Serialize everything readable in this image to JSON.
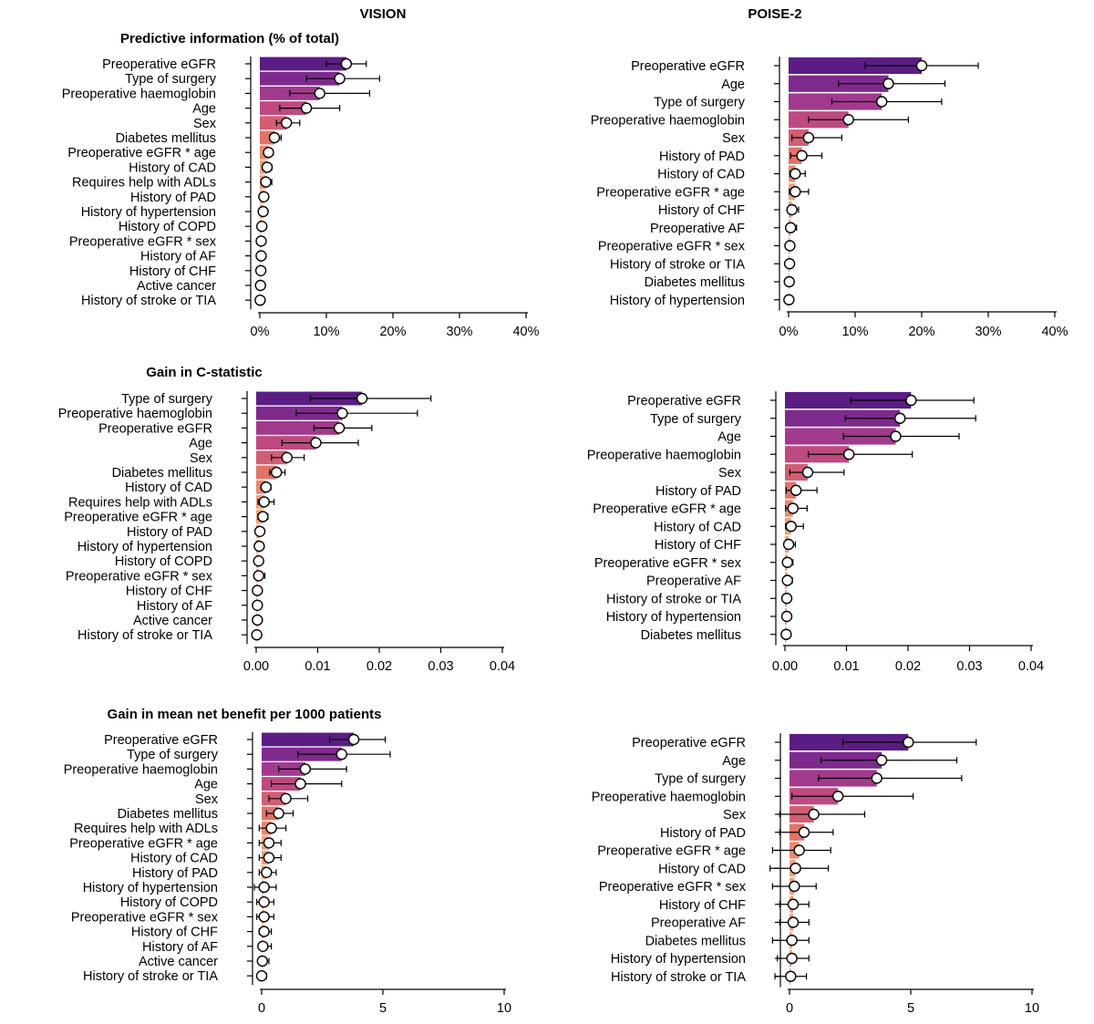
{
  "column_titles": [
    "VISION",
    "POISE-2"
  ],
  "row_titles": [
    "Predictive information (% of total)",
    "Gain in C-statistic",
    "Gain in mean net benefit per 1000 patients"
  ],
  "colors": [
    "#5b1d83",
    "#7e2a8c",
    "#a13a8c",
    "#bd4a80",
    "#d15f74",
    "#e07368",
    "#e88a6c",
    "#eea27a"
  ],
  "chart_data": [
    {
      "type": "bar",
      "study": "VISION",
      "metric": "Predictive information (% of total)",
      "title": "Predictive information (% of total)",
      "xlim": [
        0,
        40
      ],
      "ticks": [
        0,
        10,
        20,
        30,
        40
      ],
      "tick_labels": [
        "0%",
        "10%",
        "20%",
        "30%",
        "40%"
      ],
      "categories": [
        "Preoperative eGFR",
        "Type of surgery",
        "Preoperative haemoglobin",
        "Age",
        "Sex",
        "Diabetes mellitus",
        "Preoperative eGFR * age",
        "History of CAD",
        "Requires help with ADLs",
        "History of PAD",
        "History of hypertension",
        "History of COPD",
        "Preoperative eGFR * sex",
        "History of AF",
        "History of CHF",
        "Active cancer",
        "History of stroke or TIA"
      ],
      "values": [
        13.0,
        12.0,
        9.0,
        7.0,
        4.0,
        2.2,
        1.3,
        1.1,
        0.9,
        0.6,
        0.5,
        0.3,
        0.2,
        0.2,
        0.15,
        0.1,
        0.05
      ],
      "lower": [
        10.0,
        7.0,
        4.5,
        3.0,
        2.5,
        1.5,
        0.8,
        0.6,
        0.4,
        0.3,
        0.2,
        0.1,
        0.05,
        0.05,
        0.05,
        0.02,
        0.01
      ],
      "upper": [
        16.0,
        18.0,
        16.5,
        12.0,
        6.0,
        3.2,
        2.0,
        1.8,
        1.8,
        1.0,
        0.9,
        0.6,
        0.5,
        0.4,
        0.4,
        0.3,
        0.2
      ]
    },
    {
      "type": "bar",
      "study": "POISE-2",
      "metric": "Predictive information (% of total)",
      "title": "",
      "xlim": [
        0,
        40
      ],
      "ticks": [
        0,
        10,
        20,
        30,
        40
      ],
      "tick_labels": [
        "0%",
        "10%",
        "20%",
        "30%",
        "40%"
      ],
      "categories": [
        "Preoperative eGFR",
        "Age",
        "Type of surgery",
        "Preoperative haemoglobin",
        "Sex",
        "History of PAD",
        "History of CAD",
        "Preoperative eGFR * age",
        "History of CHF",
        "Preoperative AF",
        "Preoperative eGFR * sex",
        "History of stroke or TIA",
        "Diabetes mellitus",
        "History of hypertension"
      ],
      "values": [
        20.0,
        15.0,
        14.0,
        9.0,
        3.0,
        2.0,
        1.0,
        1.0,
        0.5,
        0.3,
        0.2,
        0.15,
        0.1,
        0.05
      ],
      "lower": [
        11.5,
        7.5,
        6.5,
        3.0,
        0.5,
        0.3,
        0.2,
        0.1,
        0.1,
        0.05,
        0.05,
        0.02,
        0.02,
        0.01
      ],
      "upper": [
        28.5,
        23.5,
        23.0,
        18.0,
        8.0,
        5.0,
        2.5,
        3.0,
        1.5,
        1.2,
        0.8,
        0.6,
        0.5,
        0.5
      ]
    },
    {
      "type": "bar",
      "study": "VISION",
      "metric": "Gain in C-statistic",
      "title": "Gain in C-statistic",
      "xlim": [
        0,
        0.04
      ],
      "ticks": [
        0,
        0.01,
        0.02,
        0.03,
        0.04
      ],
      "tick_labels": [
        "0.00",
        "0.01",
        "0.02",
        "0.03",
        "0.04"
      ],
      "categories": [
        "Type of surgery",
        "Preoperative haemoglobin",
        "Preoperative eGFR",
        "Age",
        "Sex",
        "Diabetes mellitus",
        "History of CAD",
        "Requires help with ADLs",
        "Preoperative eGFR * age",
        "History of PAD",
        "History of hypertension",
        "History of COPD",
        "Preoperative eGFR * sex",
        "History of CHF",
        "History of AF",
        "Active cancer",
        "History of stroke or TIA"
      ],
      "values": [
        0.0172,
        0.014,
        0.0135,
        0.0097,
        0.005,
        0.0033,
        0.0016,
        0.0013,
        0.0011,
        0.0006,
        0.0005,
        0.0004,
        0.0004,
        0.0002,
        0.0002,
        0.0002,
        0.0001
      ],
      "lower": [
        0.0088,
        0.0065,
        0.0094,
        0.0042,
        0.0025,
        0.0022,
        0.0008,
        0.0003,
        0.0003,
        0.0002,
        0.0001,
        0.0001,
        0.0001,
        0.0,
        0.0,
        0.0,
        0.0
      ],
      "upper": [
        0.0284,
        0.0262,
        0.0188,
        0.0166,
        0.0078,
        0.0047,
        0.0024,
        0.0029,
        0.0019,
        0.0012,
        0.0011,
        0.001,
        0.0014,
        0.0007,
        0.0008,
        0.0006,
        0.0003
      ]
    },
    {
      "type": "bar",
      "study": "POISE-2",
      "metric": "Gain in C-statistic",
      "title": "",
      "xlim": [
        0,
        0.04
      ],
      "ticks": [
        0,
        0.01,
        0.02,
        0.03,
        0.04
      ],
      "tick_labels": [
        "0.00",
        "0.01",
        "0.02",
        "0.03",
        "0.04"
      ],
      "categories": [
        "Preoperative eGFR",
        "Type of surgery",
        "Age",
        "Preoperative haemoglobin",
        "Sex",
        "History of PAD",
        "Preoperative eGFR * age",
        "History of CAD",
        "History of CHF",
        "Preoperative eGFR * sex",
        "Preoperative AF",
        "History of stroke or TIA",
        "History of hypertension",
        "Diabetes mellitus"
      ],
      "values": [
        0.0205,
        0.0187,
        0.018,
        0.0104,
        0.0037,
        0.0018,
        0.0013,
        0.001,
        0.0006,
        0.0004,
        0.0004,
        0.0003,
        0.0003,
        0.0002
      ],
      "lower": [
        0.0107,
        0.0098,
        0.0095,
        0.0038,
        0.0008,
        0.0002,
        0.0001,
        0.0001,
        0.0,
        0.0,
        0.0,
        0.0,
        0.0,
        0.0
      ],
      "upper": [
        0.0307,
        0.031,
        0.0283,
        0.0207,
        0.0096,
        0.0052,
        0.0036,
        0.003,
        0.0017,
        0.0013,
        0.0012,
        0.0009,
        0.0009,
        0.0008
      ]
    },
    {
      "type": "bar",
      "study": "VISION",
      "metric": "Gain in mean net benefit per 1000 patients",
      "title": "Gain in mean net benefit per 1000 patients",
      "xlim": [
        0,
        10
      ],
      "ticks": [
        0,
        5,
        10
      ],
      "tick_labels": [
        "0",
        "5",
        "10"
      ],
      "categories": [
        "Preoperative eGFR",
        "Type of surgery",
        "Preoperative haemoglobin",
        "Age",
        "Sex",
        "Diabetes mellitus",
        "Requires help with ADLs",
        "Preoperative eGFR * age",
        "History of CAD",
        "History of PAD",
        "History of hypertension",
        "History of COPD",
        "Preoperative eGFR * sex",
        "History of CHF",
        "History of AF",
        "Active cancer",
        "History of stroke or TIA"
      ],
      "values": [
        3.8,
        3.3,
        1.8,
        1.6,
        1.0,
        0.7,
        0.4,
        0.3,
        0.3,
        0.2,
        0.1,
        0.1,
        0.1,
        0.1,
        0.05,
        0.03,
        0.0
      ],
      "lower": [
        2.8,
        1.5,
        0.7,
        0.4,
        0.3,
        0.2,
        -0.1,
        -0.1,
        -0.1,
        -0.1,
        -0.3,
        -0.2,
        -0.2,
        -0.1,
        -0.1,
        -0.1,
        -0.1
      ],
      "upper": [
        5.1,
        5.3,
        3.5,
        3.3,
        1.9,
        1.3,
        1.0,
        0.8,
        0.8,
        0.6,
        0.6,
        0.5,
        0.5,
        0.4,
        0.4,
        0.3,
        0.2
      ]
    },
    {
      "type": "bar",
      "study": "POISE-2",
      "metric": "Gain in mean net benefit per 1000 patients",
      "title": "",
      "xlim": [
        0,
        10
      ],
      "ticks": [
        0,
        5,
        10
      ],
      "tick_labels": [
        "0",
        "5",
        "10"
      ],
      "categories": [
        "Preoperative eGFR",
        "Age",
        "Type of surgery",
        "Preoperative haemoglobin",
        "Sex",
        "History of PAD",
        "Preoperative eGFR * age",
        "History of CAD",
        "Preoperative eGFR * sex",
        "History of CHF",
        "Preoperative AF",
        "Diabetes mellitus",
        "History of hypertension",
        "History of stroke or TIA"
      ],
      "values": [
        4.9,
        3.8,
        3.6,
        2.0,
        1.0,
        0.6,
        0.4,
        0.25,
        0.2,
        0.15,
        0.15,
        0.1,
        0.1,
        0.05
      ],
      "lower": [
        2.2,
        1.3,
        1.2,
        0.1,
        -0.4,
        -0.4,
        -0.7,
        -0.8,
        -0.7,
        -0.4,
        -0.4,
        -0.7,
        -0.5,
        -0.6
      ],
      "upper": [
        7.7,
        6.9,
        7.1,
        5.1,
        3.1,
        1.8,
        1.7,
        1.6,
        1.1,
        0.8,
        0.8,
        0.8,
        0.8,
        0.7
      ]
    }
  ]
}
